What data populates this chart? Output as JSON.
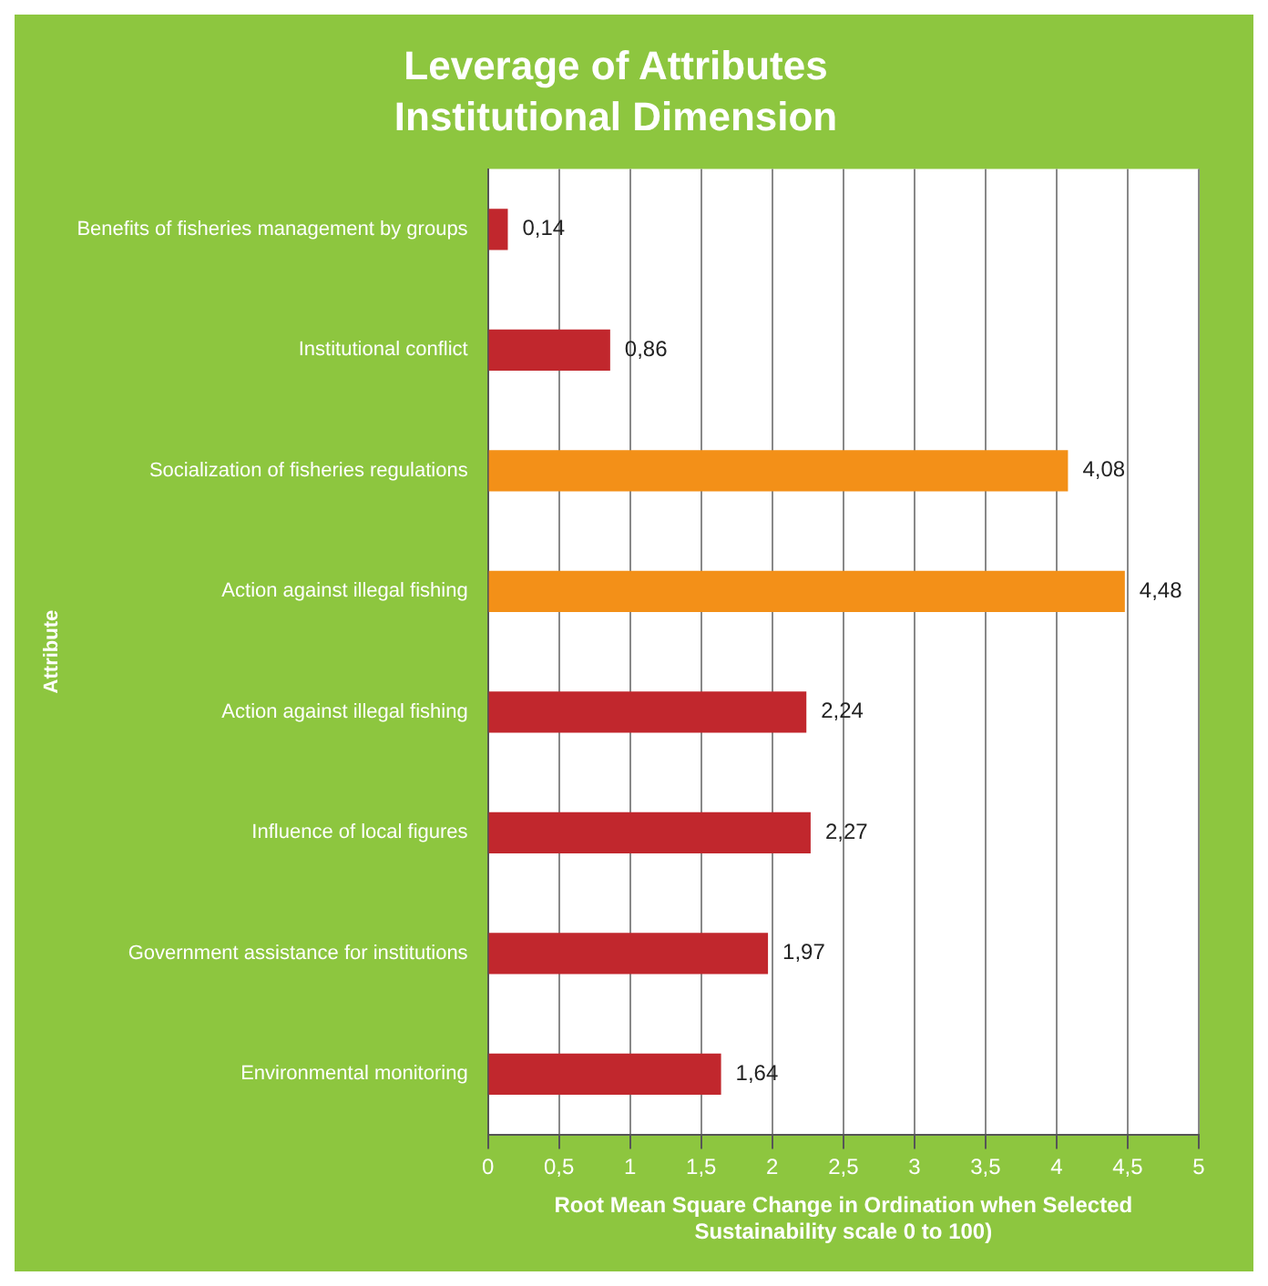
{
  "chart_data": {
    "type": "bar",
    "orientation": "horizontal",
    "title": "Leverage of Attributes",
    "subtitle": "Institutional Dimension",
    "ylabel": "Attribute",
    "xlabel": "Root Mean Square Change in Ordination when Selected\nSustainability scale 0 to 100)",
    "categories": [
      "Benefits of fisheries management by groups",
      "Institutional conflict",
      "Socialization of fisheries regulations",
      "Action against illegal fishing",
      "Action against illegal fishing",
      "Influence of local figures",
      "Government assistance for institutions",
      "Environmental monitoring"
    ],
    "values": [
      0.14,
      0.86,
      4.08,
      4.48,
      2.24,
      2.27,
      1.97,
      1.64
    ],
    "value_labels": [
      "0,14",
      "0,86",
      "4,08",
      "4,48",
      "2,24",
      "2,27",
      "1,97",
      "1,64"
    ],
    "colors": [
      "#c1272d",
      "#c1272d",
      "#f39018",
      "#f39018",
      "#c1272d",
      "#c1272d",
      "#c1272d",
      "#c1272d"
    ],
    "xlim": [
      0,
      5
    ],
    "xticks": [
      0,
      {
        "value": 0.5,
        "label": "0,5"
      },
      1,
      {
        "value": 1.5,
        "label": "1,5"
      },
      2,
      {
        "value": 2.5,
        "label": "2,5"
      },
      3,
      {
        "value": 3.5,
        "label": "3,5"
      },
      4,
      {
        "value": 4.5,
        "label": "4,5"
      },
      5
    ],
    "grid": "x",
    "legend": false
  }
}
